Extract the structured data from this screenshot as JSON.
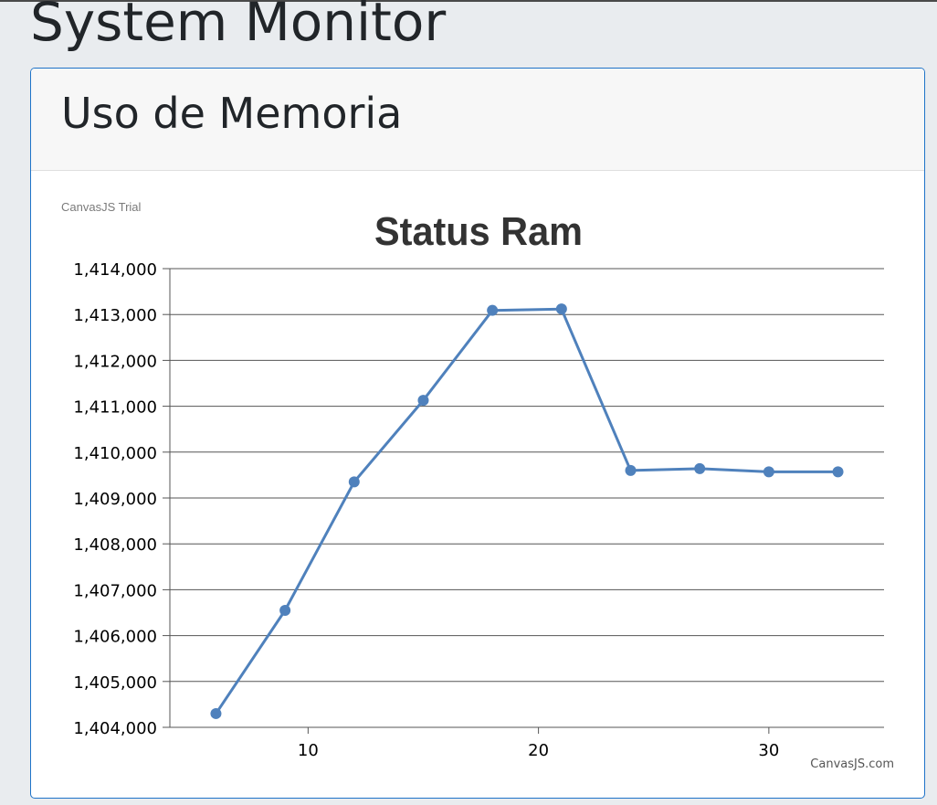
{
  "page": {
    "title": "System Monitor"
  },
  "card": {
    "title": "Uso de Memoria"
  },
  "chart_data": {
    "type": "line",
    "title": "Status Ram",
    "watermark": "CanvasJS Trial",
    "credit": "CanvasJS.com",
    "xlabel": "",
    "ylabel": "",
    "xlim": [
      4,
      35
    ],
    "ylim": [
      1404000,
      1414000
    ],
    "x_ticks": [
      10,
      20,
      30
    ],
    "y_ticks": [
      1404000,
      1405000,
      1406000,
      1407000,
      1408000,
      1409000,
      1410000,
      1411000,
      1412000,
      1413000,
      1414000
    ],
    "x_tick_labels": [
      "10",
      "20",
      "30"
    ],
    "y_tick_labels": [
      "1,404,000",
      "1,405,000",
      "1,406,000",
      "1,407,000",
      "1,408,000",
      "1,409,000",
      "1,410,000",
      "1,411,000",
      "1,412,000",
      "1,413,000",
      "1,414,000"
    ],
    "grid": true,
    "series": [
      {
        "color": "#4f81bc",
        "x": [
          6,
          9,
          12,
          15,
          18,
          21,
          24,
          27,
          30,
          33
        ],
        "y": [
          1404300,
          1406550,
          1409350,
          1411130,
          1413090,
          1413120,
          1409600,
          1409640,
          1409570,
          1409570
        ]
      }
    ]
  }
}
